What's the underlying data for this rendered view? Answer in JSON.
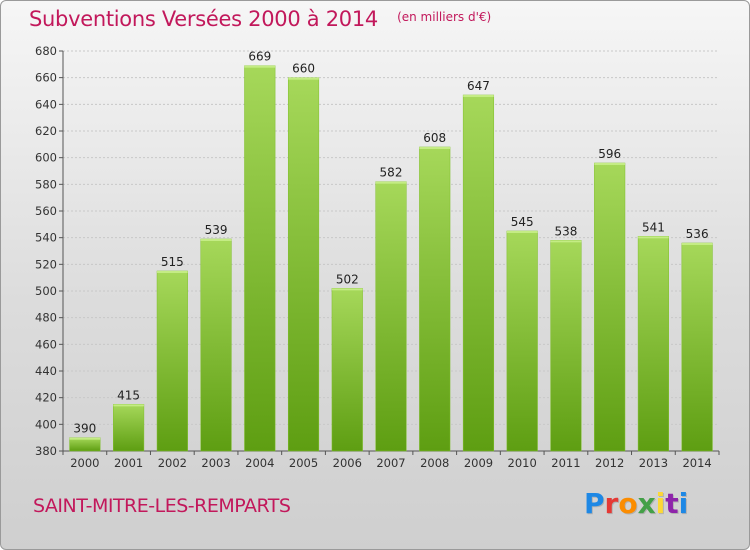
{
  "title": "Subventions Versées 2000 à 2014",
  "subtitle": "(en milliers d'€)",
  "commune": "SAINT-MITRE-LES-REMPARTS",
  "brand": {
    "letters": [
      "P",
      "r",
      "o",
      "x",
      "i",
      "t",
      "i"
    ],
    "colors": [
      "#1e88e5",
      "#e53935",
      "#fb8c00",
      "#43a047",
      "#fdd835",
      "#8e24aa",
      "#1e88e5"
    ]
  },
  "colors": {
    "title": "#c2185b",
    "bar_top": "#a6d85a",
    "bar_bottom": "#5e9e12",
    "grid": "#c8c8c8"
  },
  "chart_data": {
    "type": "bar",
    "title": "Subventions Versées 2000 à 2014",
    "subtitle": "(en milliers d'€)",
    "xlabel": "",
    "ylabel": "",
    "categories": [
      "2000",
      "2001",
      "2002",
      "2003",
      "2004",
      "2005",
      "2006",
      "2007",
      "2008",
      "2009",
      "2010",
      "2011",
      "2012",
      "2013",
      "2014"
    ],
    "values": [
      390,
      415,
      515,
      539,
      669,
      660,
      502,
      582,
      608,
      647,
      545,
      538,
      596,
      541,
      536
    ],
    "ylim": [
      380,
      680
    ],
    "yticks": [
      380,
      400,
      420,
      440,
      460,
      480,
      500,
      520,
      540,
      560,
      580,
      600,
      620,
      640,
      660,
      680
    ],
    "grid": true,
    "data_labels": true
  }
}
